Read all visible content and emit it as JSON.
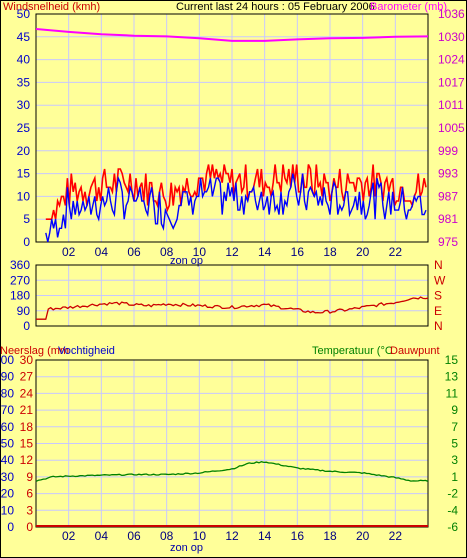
{
  "colors": {
    "background": "#ffff99",
    "grid": "#c8c8ff",
    "wind": "#ff0000",
    "gust_overlay": "#0000ff",
    "barometer": "#ff00ff",
    "direction": "#cc0000",
    "precipitation": "#cc0000",
    "humidity": "#0000cc",
    "temperature": "#008000",
    "dewpoint": "#cc0000",
    "axis": "#0000cc"
  },
  "header": {
    "wind_title": "Windsnelheid (kmh)",
    "current": "Current last 24 hours : 05 February 2006",
    "baro_title": "Barometer (mb)"
  },
  "footer": {
    "sunrise_label": "zon op"
  },
  "panel3": {
    "precip_title": "Neerslag (mm",
    "humidity_title": "Vochtigheid",
    "temp_title": "Temperatuur (°C",
    "dew_title": "Dauwpunt"
  },
  "chart_data": [
    {
      "type": "line",
      "title": "Current last 24 hours : 05 February 2006",
      "x_ticks": [
        "02",
        "04",
        "06",
        "08",
        "10",
        "12",
        "14",
        "16",
        "18",
        "20",
        "22"
      ],
      "left_axis": {
        "label": "Windsnelheid (kmh)",
        "range": [
          0,
          50
        ],
        "ticks": [
          0,
          5,
          10,
          15,
          20,
          25,
          30,
          35,
          40,
          45,
          50
        ]
      },
      "right_axis": {
        "label": "Barometer (mb)",
        "range": [
          975,
          1036
        ],
        "ticks": [
          975,
          981,
          987,
          993,
          999,
          1005,
          1011,
          1017,
          1024,
          1030,
          1036
        ]
      },
      "series": [
        {
          "name": "Windsnelheid",
          "axis": "left",
          "x": [
            0,
            2,
            4,
            6,
            8,
            10,
            12,
            14,
            16,
            18,
            20,
            22,
            24
          ],
          "values": [
            0,
            10,
            11,
            12,
            9,
            13,
            12,
            12,
            13,
            11,
            12,
            11,
            10
          ]
        },
        {
          "name": "Barometer",
          "axis": "right",
          "x": [
            0,
            2,
            4,
            6,
            8,
            10,
            12,
            14,
            16,
            18,
            20,
            22,
            24
          ],
          "values": [
            1032,
            1031.2,
            1030.6,
            1030.2,
            1030,
            1029.5,
            1028.8,
            1028.8,
            1029.2,
            1029.5,
            1029.6,
            1029.9,
            1030
          ]
        }
      ]
    },
    {
      "type": "line",
      "x_ticks": [],
      "left_axis": {
        "range": [
          0,
          360
        ],
        "ticks": [
          0,
          90,
          180,
          270,
          360
        ]
      },
      "right_axis": {
        "ticks": [
          "N",
          "W",
          "S",
          "E",
          "N"
        ]
      },
      "series": [
        {
          "name": "Windrichting",
          "x": [
            0,
            0.6,
            0.7,
            2,
            3,
            4,
            5,
            6,
            7,
            8,
            9,
            10,
            11,
            12,
            13,
            14,
            15,
            16,
            17,
            18,
            19,
            20,
            21,
            22,
            23,
            24
          ],
          "values": [
            40,
            40,
            100,
            110,
            120,
            130,
            135,
            125,
            120,
            130,
            125,
            120,
            115,
            110,
            120,
            125,
            110,
            95,
            80,
            85,
            95,
            110,
            125,
            140,
            165,
            170
          ]
        }
      ]
    },
    {
      "type": "line",
      "x_ticks": [
        "02",
        "04",
        "06",
        "08",
        "10",
        "12",
        "14",
        "16",
        "18",
        "20",
        "22"
      ],
      "left_axis": {
        "label": "Neerslag (mm",
        "range": [
          0,
          30
        ],
        "ticks": [
          0,
          3,
          6,
          9,
          12,
          15,
          18,
          21,
          24,
          27,
          30
        ]
      },
      "left_axis_2": {
        "label": "Vochtigheid",
        "range": [
          0,
          100
        ],
        "ticks": [
          0,
          10,
          20,
          30,
          40,
          50,
          60,
          70,
          80,
          90,
          100
        ]
      },
      "right_axis": {
        "label": "Temperatuur (°C",
        "range": [
          -6,
          15
        ],
        "ticks": [
          -6,
          -4,
          -2,
          1,
          3,
          5,
          7,
          9,
          11,
          13,
          15
        ]
      },
      "series": [
        {
          "name": "Temperatuur",
          "x": [
            0,
            1,
            2,
            4,
            6,
            8,
            10,
            12,
            13,
            14,
            15,
            16,
            18,
            20,
            22,
            23,
            24
          ],
          "values": [
            -0.2,
            0.3,
            0.4,
            0.5,
            0.6,
            0.6,
            0.8,
            1.3,
            2.0,
            2.2,
            1.8,
            1.4,
            1.0,
            0.8,
            0.2,
            -0.2,
            -0.2
          ]
        },
        {
          "name": "Neerslag",
          "x": [
            0,
            11.5,
            24
          ],
          "values": [
            0,
            0,
            0
          ]
        }
      ]
    }
  ]
}
